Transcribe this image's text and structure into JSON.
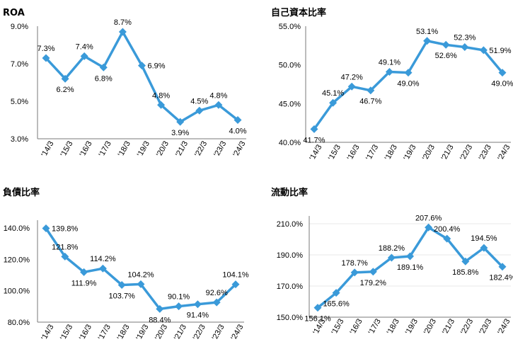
{
  "chart_data": [
    {
      "type": "line",
      "title": "ROA",
      "categories": [
        "'14/3",
        "'15/3",
        "'16/3",
        "'17/3",
        "'18/3",
        "'19/3",
        "'20/3",
        "'21/3",
        "'22/3",
        "'23/3",
        "'24/3"
      ],
      "values": [
        7.3,
        6.2,
        7.4,
        6.8,
        8.7,
        6.9,
        4.8,
        3.9,
        4.5,
        4.8,
        4.0
      ],
      "data_labels": [
        "7.3%",
        "6.2%",
        "7.4%",
        "6.8%",
        "8.7%",
        "6.9%",
        "4.8%",
        "3.9%",
        "4.5%",
        "4.8%",
        "4.0%"
      ],
      "yticks": [
        3.0,
        5.0,
        7.0,
        9.0
      ],
      "ytick_labels": [
        "3.0%",
        "5.0%",
        "7.0%",
        "9.0%"
      ],
      "ylim": [
        3.0,
        9.0
      ],
      "color": "#3a9ad9",
      "grid": false
    },
    {
      "type": "line",
      "title": "自己資本比率",
      "categories": [
        "'14/3",
        "'15/3",
        "'16/3",
        "'17/3",
        "'18/3",
        "'19/3",
        "'20/3",
        "'21/3",
        "'22/3",
        "'23/3",
        "'24/3"
      ],
      "values": [
        41.7,
        45.1,
        47.2,
        46.7,
        49.1,
        49.0,
        53.1,
        52.6,
        52.3,
        51.9,
        49.0
      ],
      "data_labels": [
        "41.7%",
        "45.1%",
        "47.2%",
        "46.7%",
        "49.1%",
        "49.0%",
        "53.1%",
        "52.6%",
        "52.3%",
        "51.9%",
        "49.0%"
      ],
      "yticks": [
        40.0,
        45.0,
        50.0,
        55.0
      ],
      "ytick_labels": [
        "40.0%",
        "45.0%",
        "50.0%",
        "55.0%"
      ],
      "ylim": [
        40.0,
        55.0
      ],
      "color": "#3a9ad9",
      "grid": false
    },
    {
      "type": "line",
      "title": "負債比率",
      "categories": [
        "'14/3",
        "'15/3",
        "'16/3",
        "'17/3",
        "'18/3",
        "'19/3",
        "'20/3",
        "'21/3",
        "'22/3",
        "'23/3",
        "'24/3"
      ],
      "values": [
        139.8,
        121.8,
        111.9,
        114.2,
        103.7,
        104.2,
        88.4,
        90.1,
        91.4,
        92.6,
        104.1
      ],
      "data_labels": [
        "139.8%",
        "121.8%",
        "111.9%",
        "114.2%",
        "103.7%",
        "104.2%",
        "88.4%",
        "90.1%",
        "91.4%",
        "92.6%",
        "104.1%"
      ],
      "yticks": [
        80.0,
        100.0,
        120.0,
        140.0
      ],
      "ytick_labels": [
        "80.0%",
        "100.0%",
        "120.0%",
        "140.0%"
      ],
      "ylim": [
        80.0,
        145.0
      ],
      "color": "#3a9ad9",
      "grid": false
    },
    {
      "type": "line",
      "title": "流動比率",
      "categories": [
        "'14/3",
        "'15/3",
        "'16/3",
        "'17/3",
        "'18/3",
        "'19/3",
        "'20/3",
        "'21/3",
        "'22/3",
        "'23/3",
        "'24/3"
      ],
      "values": [
        156.1,
        165.6,
        178.7,
        179.2,
        188.2,
        189.1,
        207.6,
        200.4,
        185.8,
        194.5,
        182.4
      ],
      "data_labels": [
        "156.1%",
        "165.6%",
        "178.7%",
        "179.2%",
        "188.2%",
        "189.1%",
        "207.6%",
        "200.4%",
        "185.8%",
        "194.5%",
        "182.4%"
      ],
      "yticks": [
        150.0,
        170.0,
        190.0,
        210.0
      ],
      "ytick_labels": [
        "150.0%",
        "170.0%",
        "190.0%",
        "210.0%"
      ],
      "ylim": [
        150.0,
        215.0
      ],
      "color": "#3a9ad9",
      "grid": true
    }
  ]
}
